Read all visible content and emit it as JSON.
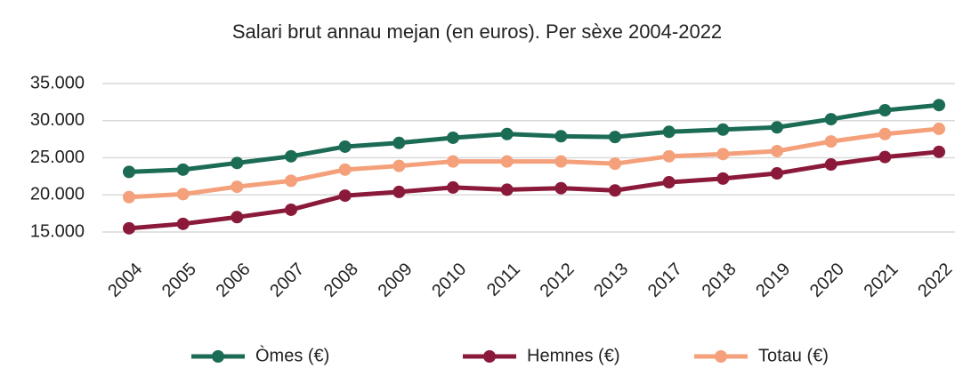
{
  "chart_data": {
    "type": "line",
    "title": "Salari brut annau mejan (en euros). Per sèxe 2004-2022",
    "categories": [
      "2004",
      "2005",
      "2006",
      "2007",
      "2008",
      "2009",
      "2010",
      "2011",
      "2012",
      "2013",
      "2017",
      "2018",
      "2019",
      "2020",
      "2021",
      "2022"
    ],
    "series": [
      {
        "name": "Òmes (€)",
        "color": "#1b6b55",
        "values": [
          23100,
          23400,
          24300,
          25200,
          26500,
          27000,
          27700,
          28200,
          27900,
          27800,
          28500,
          28800,
          29100,
          30200,
          31400,
          32100
        ]
      },
      {
        "name": "Hemnes (€)",
        "color": "#8b1a3a",
        "values": [
          15500,
          16100,
          17000,
          18000,
          19900,
          20400,
          21000,
          20700,
          20900,
          20600,
          21700,
          22200,
          22900,
          24100,
          25100,
          25800
        ]
      },
      {
        "name": "Totau (€)",
        "color": "#f4a07a",
        "values": [
          19700,
          20100,
          21100,
          21900,
          23400,
          23900,
          24500,
          24500,
          24500,
          24200,
          25200,
          25500,
          25900,
          27200,
          28200,
          28900
        ]
      }
    ],
    "ylim": [
      15000,
      35000
    ],
    "yticks": [
      {
        "value": 15000,
        "label": "15.000"
      },
      {
        "value": 20000,
        "label": "20.000"
      },
      {
        "value": 25000,
        "label": "25.000"
      },
      {
        "value": 30000,
        "label": "30.000"
      },
      {
        "value": 35000,
        "label": "35.000"
      }
    ],
    "grid": true,
    "legend": "bottom"
  }
}
